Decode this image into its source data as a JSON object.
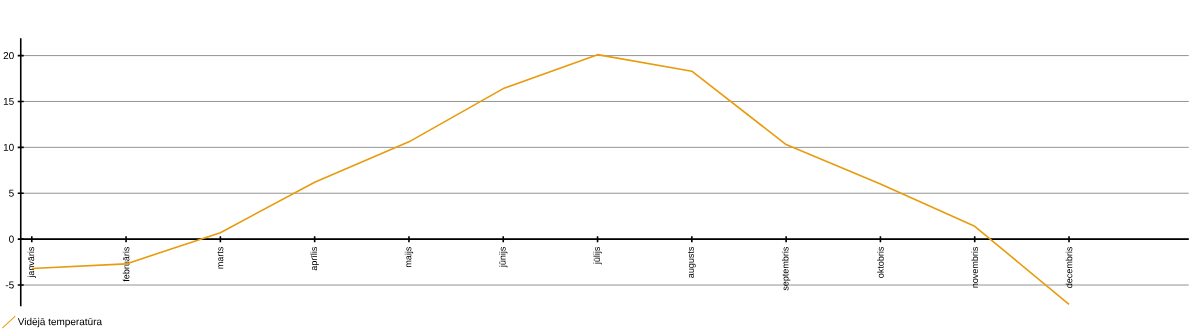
{
  "chart_data": {
    "type": "line",
    "categories": [
      "janvāris",
      "februāris",
      "marts",
      "aprīlis",
      "maijs",
      "jūnijs",
      "jūlijs",
      "augusts",
      "septembris",
      "oktobris",
      "novembris",
      "decembris"
    ],
    "series": [
      {
        "name": "Vidējā temperatūra",
        "color": "#e89b0c",
        "values": [
          -3.2,
          -2.7,
          0.7,
          6.2,
          10.6,
          16.4,
          20.1,
          18.3,
          10.3,
          6.0,
          1.4,
          -7.1
        ]
      }
    ],
    "ylim": [
      -7.3,
      21.9
    ],
    "yticks": [
      -5,
      0,
      5,
      10,
      15,
      20
    ],
    "grid": "y",
    "legend": "bottom left"
  }
}
